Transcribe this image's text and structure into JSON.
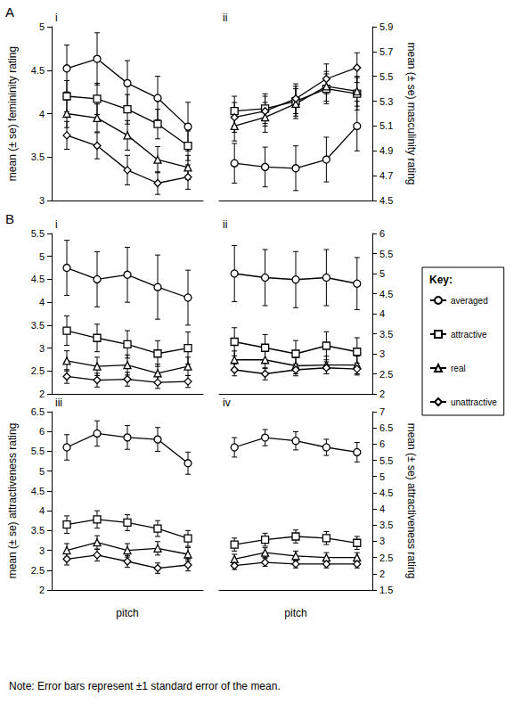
{
  "chart_data": [
    {
      "type": "line",
      "group": "A",
      "title": "i",
      "ylabel": "mean (± se) femininity rating",
      "categories": [
        null,
        null,
        null,
        null,
        null
      ],
      "ylim": [
        3,
        5
      ],
      "yticks": [
        3,
        3.5,
        4,
        4.5,
        5
      ],
      "grid": false,
      "series": [
        {
          "name": "averaged",
          "color": "#000000",
          "marker": "circle",
          "values": [
            4.52,
            4.63,
            4.35,
            4.18,
            3.85
          ],
          "errors": [
            0.27,
            0.3,
            0.26,
            0.25,
            0.28
          ]
        },
        {
          "name": "attractive",
          "color": "#000000",
          "marker": "square",
          "values": [
            4.2,
            4.17,
            4.05,
            3.88,
            3.63
          ],
          "errors": [
            0.18,
            0.18,
            0.17,
            0.17,
            0.17
          ]
        },
        {
          "name": "real",
          "color": "#000000",
          "marker": "triangle",
          "values": [
            4.0,
            3.95,
            3.75,
            3.47,
            3.38
          ],
          "errors": [
            0.16,
            0.16,
            0.17,
            0.15,
            0.14
          ]
        },
        {
          "name": "unattractive",
          "color": "#000000",
          "marker": "diamond",
          "values": [
            3.75,
            3.63,
            3.35,
            3.2,
            3.27
          ],
          "errors": [
            0.16,
            0.15,
            0.17,
            0.13,
            0.14
          ]
        }
      ]
    },
    {
      "type": "line",
      "group": "A",
      "title": "ii",
      "y2label": "mean (± se) masculinity rating",
      "categories": [
        null,
        null,
        null,
        null,
        null
      ],
      "y2lim": [
        4.5,
        5.9
      ],
      "y2ticks": [
        4.5,
        4.7,
        4.9,
        5.1,
        5.3,
        5.5,
        5.7,
        5.9
      ],
      "grid": false,
      "series": [
        {
          "name": "averaged",
          "color": "#000000",
          "marker": "circle",
          "axis": "y2",
          "values": [
            4.8,
            4.77,
            4.76,
            4.83,
            5.1
          ],
          "errors": [
            0.16,
            0.16,
            0.18,
            0.18,
            0.2
          ]
        },
        {
          "name": "attractive",
          "color": "#000000",
          "marker": "square",
          "axis": "y2",
          "values": [
            5.22,
            5.24,
            5.3,
            5.4,
            5.36
          ],
          "errors": [
            0.12,
            0.12,
            0.12,
            0.12,
            0.13
          ]
        },
        {
          "name": "real",
          "color": "#000000",
          "marker": "triangle",
          "axis": "y2",
          "values": [
            5.1,
            5.17,
            5.28,
            5.42,
            5.38
          ],
          "errors": [
            0.12,
            0.12,
            0.12,
            0.12,
            0.12
          ]
        },
        {
          "name": "unattractive",
          "color": "#000000",
          "marker": "diamond",
          "axis": "y2",
          "values": [
            5.17,
            5.22,
            5.32,
            5.48,
            5.57
          ],
          "errors": [
            0.12,
            0.12,
            0.12,
            0.12,
            0.12
          ]
        }
      ]
    },
    {
      "type": "line",
      "group": "B",
      "title": "i",
      "categories": [
        null,
        null,
        null,
        null,
        null
      ],
      "ylim": [
        2,
        5.5
      ],
      "yticks": [
        2,
        2.5,
        3,
        3.5,
        4,
        4.5,
        5,
        5.5
      ],
      "grid": false,
      "series": [
        {
          "name": "averaged",
          "color": "#000000",
          "marker": "circle",
          "values": [
            4.75,
            4.5,
            4.6,
            4.33,
            4.1
          ],
          "errors": [
            0.6,
            0.6,
            0.6,
            0.7,
            0.6
          ]
        },
        {
          "name": "attractive",
          "color": "#000000",
          "marker": "square",
          "values": [
            3.38,
            3.22,
            3.08,
            2.88,
            3.0
          ],
          "errors": [
            0.32,
            0.3,
            0.3,
            0.28,
            0.35
          ]
        },
        {
          "name": "real",
          "color": "#000000",
          "marker": "triangle",
          "values": [
            2.72,
            2.6,
            2.63,
            2.45,
            2.6
          ],
          "errors": [
            0.22,
            0.2,
            0.22,
            0.2,
            0.2
          ]
        },
        {
          "name": "unattractive",
          "color": "#000000",
          "marker": "diamond",
          "values": [
            2.38,
            2.3,
            2.32,
            2.25,
            2.27
          ],
          "errors": [
            0.15,
            0.15,
            0.15,
            0.13,
            0.13
          ]
        }
      ]
    },
    {
      "type": "line",
      "group": "B",
      "title": "ii",
      "categories": [
        null,
        null,
        null,
        null,
        null
      ],
      "y2lim": [
        2,
        6
      ],
      "y2ticks": [
        2,
        2.5,
        3,
        3.5,
        4,
        4.5,
        5,
        5.5,
        6
      ],
      "grid": false,
      "series": [
        {
          "name": "averaged",
          "color": "#000000",
          "marker": "circle",
          "axis": "y2",
          "values": [
            5.0,
            4.9,
            4.85,
            4.9,
            4.75
          ],
          "errors": [
            0.7,
            0.7,
            0.7,
            0.7,
            0.65
          ]
        },
        {
          "name": "attractive",
          "color": "#000000",
          "marker": "square",
          "axis": "y2",
          "values": [
            3.3,
            3.15,
            3.0,
            3.2,
            3.05
          ],
          "errors": [
            0.35,
            0.33,
            0.33,
            0.35,
            0.35
          ]
        },
        {
          "name": "real",
          "color": "#000000",
          "marker": "triangle",
          "axis": "y2",
          "values": [
            2.85,
            2.85,
            2.7,
            2.72,
            2.72
          ],
          "errors": [
            0.22,
            0.22,
            0.2,
            0.22,
            0.22
          ]
        },
        {
          "name": "unattractive",
          "color": "#000000",
          "marker": "diamond",
          "axis": "y2",
          "values": [
            2.6,
            2.5,
            2.6,
            2.65,
            2.62
          ],
          "errors": [
            0.15,
            0.15,
            0.15,
            0.15,
            0.15
          ]
        }
      ]
    },
    {
      "type": "line",
      "group": "B",
      "title": "iii",
      "ylabel": "mean (± se) attractiveness rating",
      "xlabel": "pitch",
      "categories": [
        null,
        null,
        null,
        null,
        null
      ],
      "ylim": [
        2,
        6.5
      ],
      "yticks": [
        2,
        2.5,
        3,
        3.5,
        4,
        4.5,
        5,
        5.5,
        6,
        6.5
      ],
      "grid": false,
      "series": [
        {
          "name": "averaged",
          "color": "#000000",
          "marker": "circle",
          "values": [
            5.6,
            5.95,
            5.85,
            5.8,
            5.2
          ],
          "errors": [
            0.32,
            0.32,
            0.3,
            0.3,
            0.28
          ]
        },
        {
          "name": "attractive",
          "color": "#000000",
          "marker": "square",
          "values": [
            3.65,
            3.78,
            3.7,
            3.55,
            3.3
          ],
          "errors": [
            0.22,
            0.22,
            0.2,
            0.2,
            0.2
          ]
        },
        {
          "name": "real",
          "color": "#000000",
          "marker": "triangle",
          "values": [
            3.0,
            3.2,
            3.0,
            3.05,
            2.9
          ],
          "errors": [
            0.17,
            0.17,
            0.17,
            0.17,
            0.17
          ]
        },
        {
          "name": "unattractive",
          "color": "#000000",
          "marker": "diamond",
          "values": [
            2.78,
            2.88,
            2.72,
            2.55,
            2.63
          ],
          "errors": [
            0.15,
            0.15,
            0.15,
            0.13,
            0.15
          ]
        }
      ]
    },
    {
      "type": "line",
      "group": "B",
      "title": "iv",
      "y2label": "mean (± se) attractiveness rating",
      "xlabel": "pitch",
      "categories": [
        null,
        null,
        null,
        null,
        null
      ],
      "y2lim": [
        1.5,
        7
      ],
      "y2ticks": [
        1.5,
        2,
        2.5,
        3,
        3.5,
        4,
        4.5,
        5,
        5.5,
        6,
        6.5,
        7
      ],
      "grid": false,
      "series": [
        {
          "name": "averaged",
          "color": "#000000",
          "marker": "circle",
          "axis": "y2",
          "values": [
            5.9,
            6.2,
            6.1,
            5.9,
            5.75
          ],
          "errors": [
            0.3,
            0.25,
            0.28,
            0.25,
            0.3
          ]
        },
        {
          "name": "attractive",
          "color": "#000000",
          "marker": "square",
          "axis": "y2",
          "values": [
            2.9,
            3.05,
            3.15,
            3.1,
            2.95
          ],
          "errors": [
            0.2,
            0.2,
            0.2,
            0.2,
            0.2
          ]
        },
        {
          "name": "real",
          "color": "#000000",
          "marker": "triangle",
          "axis": "y2",
          "values": [
            2.45,
            2.65,
            2.55,
            2.5,
            2.5
          ],
          "errors": [
            0.15,
            0.15,
            0.15,
            0.15,
            0.15
          ]
        },
        {
          "name": "unattractive",
          "color": "#000000",
          "marker": "diamond",
          "axis": "y2",
          "values": [
            2.25,
            2.35,
            2.3,
            2.3,
            2.3
          ],
          "errors": [
            0.12,
            0.12,
            0.12,
            0.12,
            0.12
          ]
        }
      ]
    }
  ],
  "legend": "right",
  "key_title": "Key:",
  "note": "Note: Error bars represent ±1 standard error of the mean."
}
